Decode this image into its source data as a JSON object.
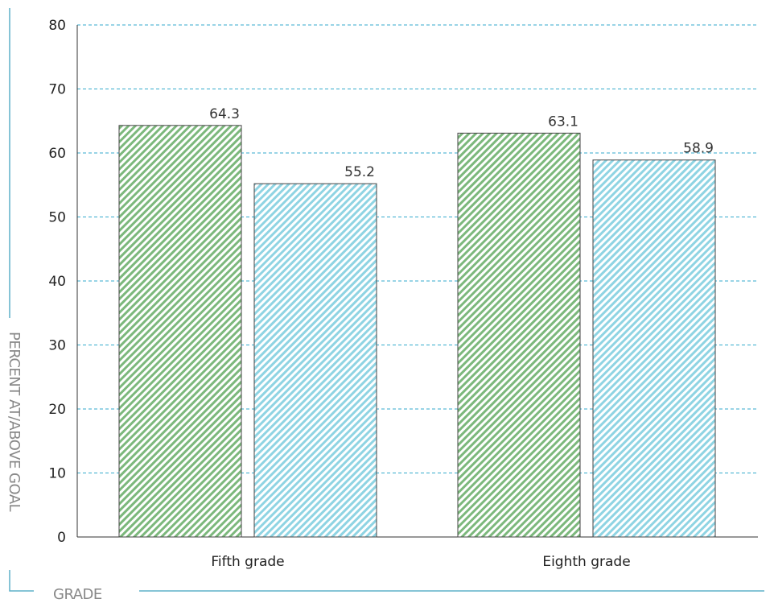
{
  "chart_data": {
    "type": "bar",
    "categories": [
      "Fifth grade",
      "Eighth grade"
    ],
    "series": [
      {
        "values": [
          64.3,
          63.1
        ],
        "color": "#7cb87c",
        "pattern": "diagonal-hatch"
      },
      {
        "values": [
          55.2,
          58.9
        ],
        "color": "#8fd4e3",
        "pattern": "diagonal-hatch"
      }
    ],
    "xlabel": "GRADE",
    "ylabel": "PERCENT AT/ABOVE GOAL",
    "ylim": [
      0,
      80
    ],
    "yticks": [
      "0",
      "10",
      "20",
      "30",
      "40",
      "50",
      "60",
      "70",
      "80"
    ],
    "data_labels": [
      [
        "64.3",
        "63.1"
      ],
      [
        "55.2",
        "58.9"
      ]
    ],
    "grid": true,
    "grid_style": "dashed",
    "grid_color": "#33aacc",
    "frame_color": "#5fb0c8"
  }
}
